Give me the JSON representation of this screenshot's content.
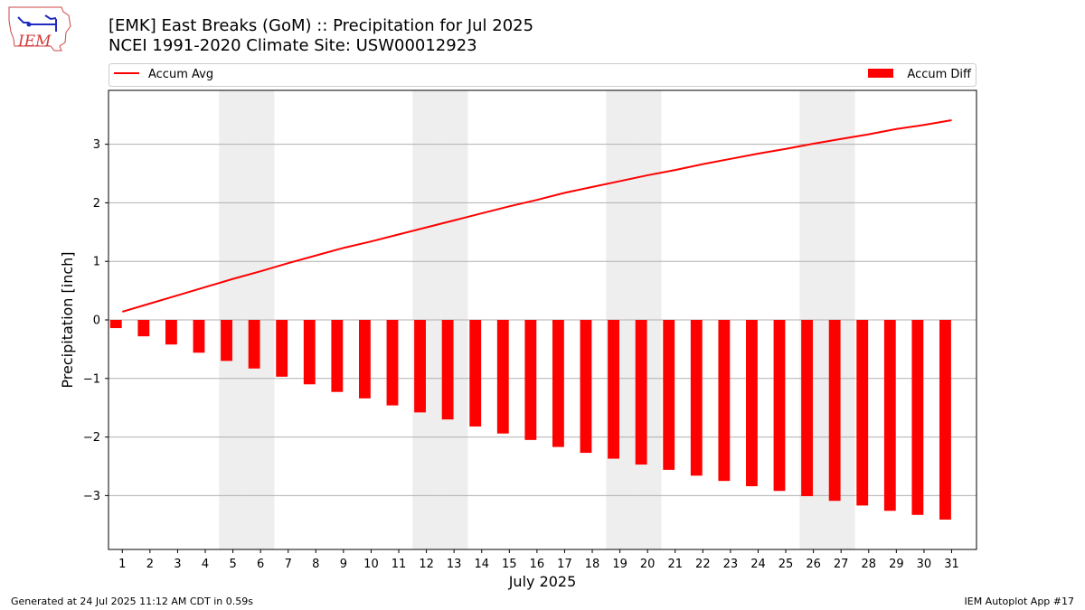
{
  "header": {
    "title_line1": "[EMK] East Breaks (GoM) :: Precipitation for Jul 2025",
    "title_line2": "NCEI 1991-2020 Climate Site: USW00012923",
    "logo_text": "IEM"
  },
  "footer": {
    "left": "Generated at 24 Jul 2025 11:12 AM CDT in 0.59s",
    "right": "IEM Autoplot App #17"
  },
  "colors": {
    "accent": "#ff0000",
    "weekend_shade": "#eeeeee",
    "grid": "#b0b0b0"
  },
  "chart_data": {
    "type": "bar",
    "xlabel": "July 2025",
    "ylabel": "Precipitation [inch]",
    "ylim": [
      -3.92,
      3.92
    ],
    "yticks": [
      {
        "value": 3,
        "label": "3"
      },
      {
        "value": 2,
        "label": "2"
      },
      {
        "value": 1,
        "label": "1"
      },
      {
        "value": 0,
        "label": "0"
      },
      {
        "value": -1,
        "label": "−1"
      },
      {
        "value": -2,
        "label": "−2"
      },
      {
        "value": -3,
        "label": "−3"
      }
    ],
    "grid": true,
    "legend_placement": "top",
    "categories": [
      "1",
      "2",
      "3",
      "4",
      "5",
      "6",
      "7",
      "8",
      "9",
      "10",
      "11",
      "12",
      "13",
      "14",
      "15",
      "16",
      "17",
      "18",
      "19",
      "20",
      "21",
      "22",
      "23",
      "24",
      "25",
      "26",
      "27",
      "28",
      "29",
      "30",
      "31"
    ],
    "weekend_days": [
      5,
      6,
      12,
      13,
      19,
      20,
      26,
      27
    ],
    "series": [
      {
        "name": "Accum Avg",
        "type": "line",
        "color": "#ff0000",
        "values": [
          0.14,
          0.28,
          0.42,
          0.56,
          0.7,
          0.83,
          0.97,
          1.1,
          1.23,
          1.34,
          1.46,
          1.58,
          1.7,
          1.82,
          1.94,
          2.05,
          2.17,
          2.27,
          2.37,
          2.47,
          2.56,
          2.66,
          2.75,
          2.84,
          2.92,
          3.01,
          3.09,
          3.17,
          3.26,
          3.33,
          3.41
        ]
      },
      {
        "name": "Accum Diff",
        "type": "bar",
        "color": "#ff0000",
        "values": [
          -0.14,
          -0.28,
          -0.42,
          -0.56,
          -0.7,
          -0.83,
          -0.97,
          -1.1,
          -1.23,
          -1.34,
          -1.46,
          -1.58,
          -1.7,
          -1.82,
          -1.94,
          -2.05,
          -2.17,
          -2.27,
          -2.37,
          -2.47,
          -2.56,
          -2.66,
          -2.75,
          -2.84,
          -2.92,
          -3.01,
          -3.09,
          -3.17,
          -3.26,
          -3.33,
          -3.41
        ]
      }
    ]
  }
}
